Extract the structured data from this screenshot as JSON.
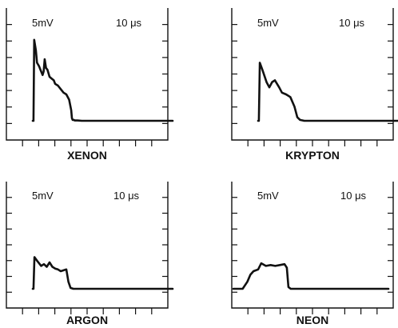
{
  "chart_data": [
    {
      "type": "line",
      "title": "XENON",
      "volts_per_div": "5mV",
      "time_per_div": "10 μs",
      "x": [
        0,
        0.05,
        0.1,
        0.22,
        0.3,
        0.45,
        0.55,
        0.7,
        0.78,
        0.85,
        0.95,
        1.05,
        1.2,
        1.35,
        1.5,
        1.6,
        1.8,
        2.0,
        2.2,
        2.4,
        2.6,
        2.75,
        2.8,
        2.85,
        2.95,
        3.0,
        3.2,
        3.5,
        4.0,
        4.5,
        5.0,
        6.0,
        7.0,
        8.0,
        9.0,
        10.0
      ],
      "y": [
        0.0,
        0.0,
        4.6,
        4.0,
        3.3,
        3.1,
        2.9,
        2.6,
        2.8,
        3.5,
        3.0,
        2.9,
        2.5,
        2.4,
        2.3,
        2.1,
        2.0,
        1.8,
        1.6,
        1.5,
        1.2,
        0.6,
        0.15,
        0.05,
        0.05,
        0.02,
        0.02,
        0.0,
        0.0,
        0.0,
        0.0,
        0.0,
        0.0,
        0.0,
        0.0,
        0.0
      ]
    },
    {
      "type": "line",
      "title": "KRYPTON",
      "volts_per_div": "5mV",
      "time_per_div": "10 μs",
      "x": [
        0,
        0.05,
        0.12,
        0.3,
        0.6,
        0.8,
        1.0,
        1.2,
        1.5,
        1.7,
        2.0,
        2.3,
        2.6,
        2.8,
        3.0,
        3.3,
        3.6,
        4.0,
        5.0,
        6.0,
        7.0,
        8.0,
        9.0,
        10.0
      ],
      "y": [
        0.0,
        0.0,
        3.3,
        2.9,
        2.2,
        1.9,
        2.2,
        2.3,
        1.9,
        1.6,
        1.5,
        1.35,
        0.8,
        0.2,
        0.05,
        0.0,
        0.0,
        0.0,
        0.0,
        0.0,
        0.0,
        0.0,
        0.0,
        0.0
      ]
    },
    {
      "type": "line",
      "title": "ARGON",
      "volts_per_div": "5mV",
      "time_per_div": "10 μs",
      "x": [
        0,
        0.05,
        0.12,
        0.3,
        0.6,
        0.8,
        1.0,
        1.2,
        1.4,
        1.6,
        1.8,
        2.0,
        2.2,
        2.4,
        2.55,
        2.7,
        2.9,
        3.2,
        4.0,
        5.0,
        6.0,
        7.0,
        8.0,
        9.0,
        10.0
      ],
      "y": [
        0.0,
        0.0,
        1.8,
        1.6,
        1.3,
        1.4,
        1.25,
        1.5,
        1.25,
        1.15,
        1.1,
        1.0,
        1.05,
        1.1,
        0.4,
        0.05,
        0.0,
        0.0,
        0.0,
        0.0,
        0.0,
        0.0,
        0.0,
        0.0,
        0.0
      ]
    },
    {
      "type": "line",
      "title": "NEON",
      "volts_per_div": "5mV",
      "time_per_div": "10 μs",
      "x": [
        0,
        0.6,
        0.9,
        1.1,
        1.3,
        1.6,
        1.8,
        2.1,
        2.4,
        2.7,
        3.0,
        3.3,
        3.45,
        3.55,
        3.7,
        4.0,
        5.0,
        6.0,
        7.0,
        8.0,
        9.0,
        10.0
      ],
      "y": [
        0.0,
        0.0,
        0.4,
        0.8,
        1.0,
        1.1,
        1.45,
        1.3,
        1.35,
        1.3,
        1.35,
        1.4,
        1.2,
        0.1,
        0.0,
        0.0,
        0.0,
        0.0,
        0.0,
        0.0,
        0.0,
        0.0
      ]
    }
  ]
}
